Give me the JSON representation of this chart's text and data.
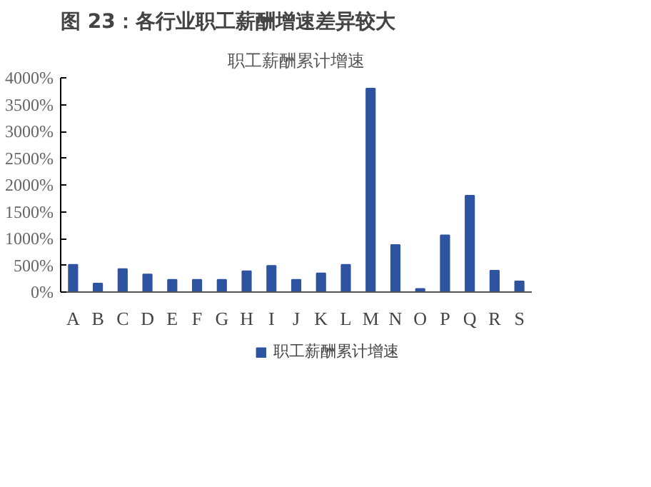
{
  "chart_data": {
    "type": "bar",
    "title": "图 23：各行业职工薪酬增速差异较大",
    "subtitle": "职工薪酬累计增速",
    "categories": [
      "A",
      "B",
      "C",
      "D",
      "E",
      "F",
      "G",
      "H",
      "I",
      "J",
      "K",
      "L",
      "M",
      "N",
      "O",
      "P",
      "Q",
      "R",
      "S"
    ],
    "series": [
      {
        "name": "职工薪酬累计增速",
        "color": "#2e54a1",
        "values": [
          510,
          160,
          430,
          330,
          230,
          230,
          230,
          390,
          490,
          230,
          350,
          510,
          3800,
          880,
          60,
          1060,
          1800,
          400,
          200
        ]
      }
    ],
    "ylim": [
      0,
      4000
    ],
    "yticks": [
      {
        "value": 0,
        "label": "0%"
      },
      {
        "value": 500,
        "label": "500%"
      },
      {
        "value": 1000,
        "label": "1000%"
      },
      {
        "value": 1500,
        "label": "1500%"
      },
      {
        "value": 2000,
        "label": "2000%"
      },
      {
        "value": 2500,
        "label": "2500%"
      },
      {
        "value": 3000,
        "label": "3000%"
      },
      {
        "value": 3500,
        "label": "3500%"
      },
      {
        "value": 4000,
        "label": "4000%"
      }
    ],
    "grid": false,
    "legend": "bottom"
  }
}
